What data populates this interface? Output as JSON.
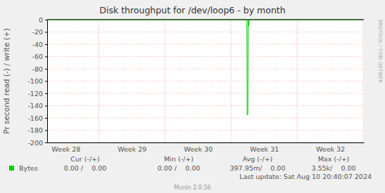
{
  "chart_data": {
    "type": "line",
    "title": "Disk throughput for /dev/loop6 - by month",
    "y_label": "Pr second read (-) / write (+)",
    "side_note": "RRDTOOL / TOBI OETIKER",
    "x": [
      28.23,
      31.24,
      31.245,
      31.255,
      31.26,
      31.27,
      31.275,
      33.0
    ],
    "series": [
      {
        "name": "Bytes",
        "color": "#00cc00",
        "values": [
          0,
          0,
          -155,
          -155,
          0,
          -10,
          0,
          0
        ]
      }
    ],
    "xlim": [
      28.22,
      33.01
    ],
    "xticks": [
      {
        "value": 28.5,
        "label": "Week 28"
      },
      {
        "value": 29.5,
        "label": "Week 29"
      },
      {
        "value": 30.5,
        "label": "Week 30"
      },
      {
        "value": 31.5,
        "label": "Week 31"
      },
      {
        "value": 32.5,
        "label": "Week 32"
      }
    ],
    "xgrid": [
      29,
      30,
      31,
      32,
      33
    ],
    "ylim": [
      -200,
      0
    ],
    "yticks": [
      0,
      -20,
      -40,
      -60,
      -80,
      -100,
      -120,
      -140,
      -160,
      -180,
      -200
    ],
    "grid": true,
    "stats": {
      "headers": [
        "Cur (-/+)",
        "Min (-/+)",
        "Avg (-/+)",
        "Max (-/+)"
      ],
      "rows": [
        {
          "name": "Bytes",
          "cells": [
            "0.00 /    0.00",
            "0.00 /    0.00",
            "397.95m/    0.00",
            "3.55k/    0.00"
          ]
        }
      ]
    },
    "last_update": "Last update: Sat Aug 10 20:40:07 2024",
    "footer": "Munin 2.0.56"
  }
}
